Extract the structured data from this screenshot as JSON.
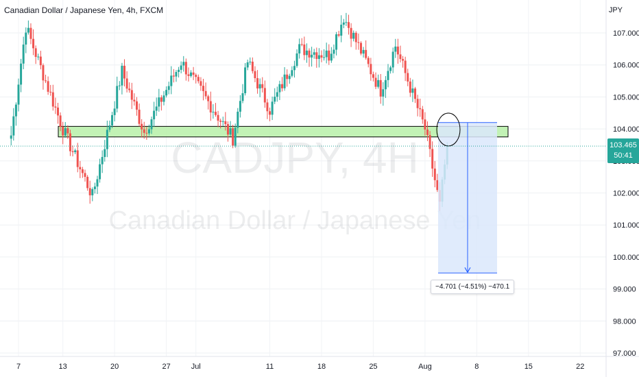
{
  "header": {
    "title": "Canadian Dollar / Japanese Yen, 4h, FXCM",
    "currency": "JPY"
  },
  "watermark": {
    "symbol": "CADJPY, 4H",
    "name": "Canadian Dollar / Japanese Yen"
  },
  "price_tag": {
    "price": "103.465",
    "countdown": "50:41",
    "color": "#26a69a"
  },
  "measure": {
    "label": "−4.701 (−4.51%) −470.1"
  },
  "colors": {
    "up": "#26a69a",
    "down": "#ef5350",
    "zone_fill": "#b7f0a8",
    "measure_fill": "#dbe7fb",
    "measure_line": "#2962ff"
  },
  "chart_data": {
    "type": "candlestick",
    "ylim": [
      96.8,
      107.8
    ],
    "y_ticks": [
      "107.000",
      "106.000",
      "105.000",
      "104.000",
      "103.000",
      "102.000",
      "101.000",
      "100.000",
      "99.000",
      "98.000",
      "97.000"
    ],
    "x_ticks": [
      "7",
      "13",
      "20",
      "27",
      "Jul",
      "11",
      "18",
      "25",
      "Aug",
      "8",
      "15",
      "22"
    ],
    "grid": true,
    "last_price": 103.465,
    "close_path": [
      {
        "x": "Jun 6",
        "y": 103.8
      },
      {
        "x": "Jun 8",
        "y": 107.2
      },
      {
        "x": "Jun 13",
        "y": 104.0
      },
      {
        "x": "Jun 17",
        "y": 101.9
      },
      {
        "x": "Jun 21",
        "y": 105.8
      },
      {
        "x": "Jun 24",
        "y": 103.9
      },
      {
        "x": "Jun 29",
        "y": 106.1
      },
      {
        "x": "Jul 6",
        "y": 103.7
      },
      {
        "x": "Jul 8",
        "y": 106.1
      },
      {
        "x": "Jul 11",
        "y": 104.6
      },
      {
        "x": "Jul 15",
        "y": 106.5
      },
      {
        "x": "Jul 19",
        "y": 106.3
      },
      {
        "x": "Jul 21",
        "y": 107.5
      },
      {
        "x": "Jul 26",
        "y": 105.2
      },
      {
        "x": "Jul 28",
        "y": 106.6
      },
      {
        "x": "Aug 1",
        "y": 104.0
      },
      {
        "x": "Aug 3",
        "y": 101.6
      },
      {
        "x": "Aug 4",
        "y": 103.5
      }
    ],
    "resistance_zone": [
      103.75,
      104.08
    ],
    "projection": {
      "from": 104.2,
      "to": 99.5
    }
  }
}
